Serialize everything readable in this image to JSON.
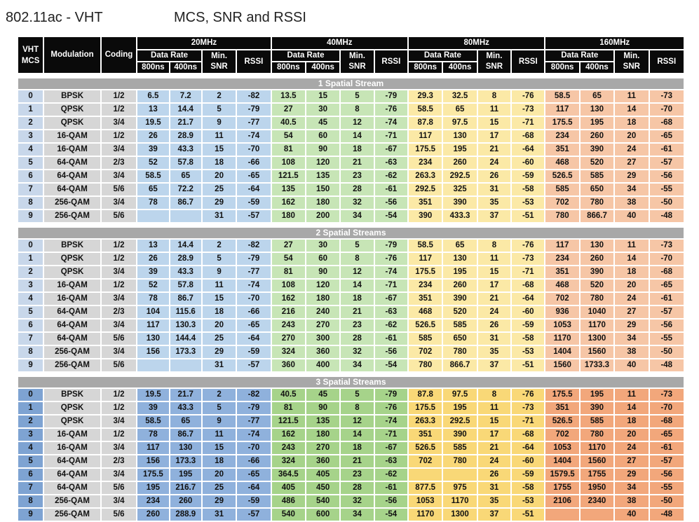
{
  "title": "802.11ac - VHT",
  "subtitle": "MCS, SNR and RSSI",
  "headers": {
    "vht_mcs_line1": "VHT",
    "vht_mcs_line2": "MCS",
    "modulation": "Modulation",
    "coding": "Coding",
    "bandwidths": [
      "20MHz",
      "40MHz",
      "80MHz",
      "160MHz"
    ],
    "data_rate": "Data Rate",
    "min_snr_line1": "Min.",
    "min_snr_line2": "SNR",
    "rssi": "RSSI",
    "gi_800": "800ns",
    "gi_400": "400ns"
  },
  "colors": {
    "header_bg": "#0a0a0a",
    "section_bg": "#a8a8a8",
    "bw20": "#bcd5ec",
    "bw40": "#c7e5b6",
    "bw80": "#fbe9a6",
    "bw160": "#f6c6a6"
  },
  "streams": [
    {
      "label": "1 Spatial Stream",
      "rows": [
        [
          "0",
          "BPSK",
          "1/2",
          "6.5",
          "7.2",
          "2",
          "-82",
          "13.5",
          "15",
          "5",
          "-79",
          "29.3",
          "32.5",
          "8",
          "-76",
          "58.5",
          "65",
          "11",
          "-73"
        ],
        [
          "1",
          "QPSK",
          "1/2",
          "13",
          "14.4",
          "5",
          "-79",
          "27",
          "30",
          "8",
          "-76",
          "58.5",
          "65",
          "11",
          "-73",
          "117",
          "130",
          "14",
          "-70"
        ],
        [
          "2",
          "QPSK",
          "3/4",
          "19.5",
          "21.7",
          "9",
          "-77",
          "40.5",
          "45",
          "12",
          "-74",
          "87.8",
          "97.5",
          "15",
          "-71",
          "175.5",
          "195",
          "18",
          "-68"
        ],
        [
          "3",
          "16-QAM",
          "1/2",
          "26",
          "28.9",
          "11",
          "-74",
          "54",
          "60",
          "14",
          "-71",
          "117",
          "130",
          "17",
          "-68",
          "234",
          "260",
          "20",
          "-65"
        ],
        [
          "4",
          "16-QAM",
          "3/4",
          "39",
          "43.3",
          "15",
          "-70",
          "81",
          "90",
          "18",
          "-67",
          "175.5",
          "195",
          "21",
          "-64",
          "351",
          "390",
          "24",
          "-61"
        ],
        [
          "5",
          "64-QAM",
          "2/3",
          "52",
          "57.8",
          "18",
          "-66",
          "108",
          "120",
          "21",
          "-63",
          "234",
          "260",
          "24",
          "-60",
          "468",
          "520",
          "27",
          "-57"
        ],
        [
          "6",
          "64-QAM",
          "3/4",
          "58.5",
          "65",
          "20",
          "-65",
          "121.5",
          "135",
          "23",
          "-62",
          "263.3",
          "292.5",
          "26",
          "-59",
          "526.5",
          "585",
          "29",
          "-56"
        ],
        [
          "7",
          "64-QAM",
          "5/6",
          "65",
          "72.2",
          "25",
          "-64",
          "135",
          "150",
          "28",
          "-61",
          "292.5",
          "325",
          "31",
          "-58",
          "585",
          "650",
          "34",
          "-55"
        ],
        [
          "8",
          "256-QAM",
          "3/4",
          "78",
          "86.7",
          "29",
          "-59",
          "162",
          "180",
          "32",
          "-56",
          "351",
          "390",
          "35",
          "-53",
          "702",
          "780",
          "38",
          "-50"
        ],
        [
          "9",
          "256-QAM",
          "5/6",
          "",
          "",
          "31",
          "-57",
          "180",
          "200",
          "34",
          "-54",
          "390",
          "433.3",
          "37",
          "-51",
          "780",
          "866.7",
          "40",
          "-48"
        ]
      ]
    },
    {
      "label": "2 Spatial Streams",
      "rows": [
        [
          "0",
          "BPSK",
          "1/2",
          "13",
          "14.4",
          "2",
          "-82",
          "27",
          "30",
          "5",
          "-79",
          "58.5",
          "65",
          "8",
          "-76",
          "117",
          "130",
          "11",
          "-73"
        ],
        [
          "1",
          "QPSK",
          "1/2",
          "26",
          "28.9",
          "5",
          "-79",
          "54",
          "60",
          "8",
          "-76",
          "117",
          "130",
          "11",
          "-73",
          "234",
          "260",
          "14",
          "-70"
        ],
        [
          "2",
          "QPSK",
          "3/4",
          "39",
          "43.3",
          "9",
          "-77",
          "81",
          "90",
          "12",
          "-74",
          "175.5",
          "195",
          "15",
          "-71",
          "351",
          "390",
          "18",
          "-68"
        ],
        [
          "3",
          "16-QAM",
          "1/2",
          "52",
          "57.8",
          "11",
          "-74",
          "108",
          "120",
          "14",
          "-71",
          "234",
          "260",
          "17",
          "-68",
          "468",
          "520",
          "20",
          "-65"
        ],
        [
          "4",
          "16-QAM",
          "3/4",
          "78",
          "86.7",
          "15",
          "-70",
          "162",
          "180",
          "18",
          "-67",
          "351",
          "390",
          "21",
          "-64",
          "702",
          "780",
          "24",
          "-61"
        ],
        [
          "5",
          "64-QAM",
          "2/3",
          "104",
          "115.6",
          "18",
          "-66",
          "216",
          "240",
          "21",
          "-63",
          "468",
          "520",
          "24",
          "-60",
          "936",
          "1040",
          "27",
          "-57"
        ],
        [
          "6",
          "64-QAM",
          "3/4",
          "117",
          "130.3",
          "20",
          "-65",
          "243",
          "270",
          "23",
          "-62",
          "526.5",
          "585",
          "26",
          "-59",
          "1053",
          "1170",
          "29",
          "-56"
        ],
        [
          "7",
          "64-QAM",
          "5/6",
          "130",
          "144.4",
          "25",
          "-64",
          "270",
          "300",
          "28",
          "-61",
          "585",
          "650",
          "31",
          "-58",
          "1170",
          "1300",
          "34",
          "-55"
        ],
        [
          "8",
          "256-QAM",
          "3/4",
          "156",
          "173.3",
          "29",
          "-59",
          "324",
          "360",
          "32",
          "-56",
          "702",
          "780",
          "35",
          "-53",
          "1404",
          "1560",
          "38",
          "-50"
        ],
        [
          "9",
          "256-QAM",
          "5/6",
          "",
          "",
          "31",
          "-57",
          "360",
          "400",
          "34",
          "-54",
          "780",
          "866.7",
          "37",
          "-51",
          "1560",
          "1733.3",
          "40",
          "-48"
        ]
      ]
    },
    {
      "label": "3 Spatial Streams",
      "rows": [
        [
          "0",
          "BPSK",
          "1/2",
          "19.5",
          "21.7",
          "2",
          "-82",
          "40.5",
          "45",
          "5",
          "-79",
          "87.8",
          "97.5",
          "8",
          "-76",
          "175.5",
          "195",
          "11",
          "-73"
        ],
        [
          "1",
          "QPSK",
          "1/2",
          "39",
          "43.3",
          "5",
          "-79",
          "81",
          "90",
          "8",
          "-76",
          "175.5",
          "195",
          "11",
          "-73",
          "351",
          "390",
          "14",
          "-70"
        ],
        [
          "2",
          "QPSK",
          "3/4",
          "58.5",
          "65",
          "9",
          "-77",
          "121.5",
          "135",
          "12",
          "-74",
          "263.3",
          "292.5",
          "15",
          "-71",
          "526.5",
          "585",
          "18",
          "-68"
        ],
        [
          "3",
          "16-QAM",
          "1/2",
          "78",
          "86.7",
          "11",
          "-74",
          "162",
          "180",
          "14",
          "-71",
          "351",
          "390",
          "17",
          "-68",
          "702",
          "780",
          "20",
          "-65"
        ],
        [
          "4",
          "16-QAM",
          "3/4",
          "117",
          "130",
          "15",
          "-70",
          "243",
          "270",
          "18",
          "-67",
          "526.5",
          "585",
          "21",
          "-64",
          "1053",
          "1170",
          "24",
          "-61"
        ],
        [
          "5",
          "64-QAM",
          "2/3",
          "156",
          "173.3",
          "18",
          "-66",
          "324",
          "360",
          "21",
          "-63",
          "702",
          "780",
          "24",
          "-60",
          "1404",
          "1560",
          "27",
          "-57"
        ],
        [
          "6",
          "64-QAM",
          "3/4",
          "175.5",
          "195",
          "20",
          "-65",
          "364.5",
          "405",
          "23",
          "-62",
          "",
          "",
          "26",
          "-59",
          "1579.5",
          "1755",
          "29",
          "-56"
        ],
        [
          "7",
          "64-QAM",
          "5/6",
          "195",
          "216.7",
          "25",
          "-64",
          "405",
          "450",
          "28",
          "-61",
          "877.5",
          "975",
          "31",
          "-58",
          "1755",
          "1950",
          "34",
          "-55"
        ],
        [
          "8",
          "256-QAM",
          "3/4",
          "234",
          "260",
          "29",
          "-59",
          "486",
          "540",
          "32",
          "-56",
          "1053",
          "1170",
          "35",
          "-53",
          "2106",
          "2340",
          "38",
          "-50"
        ],
        [
          "9",
          "256-QAM",
          "5/6",
          "260",
          "288.9",
          "31",
          "-57",
          "540",
          "600",
          "34",
          "-54",
          "1170",
          "1300",
          "37",
          "-51",
          "",
          "",
          "40",
          "-48"
        ]
      ]
    }
  ]
}
